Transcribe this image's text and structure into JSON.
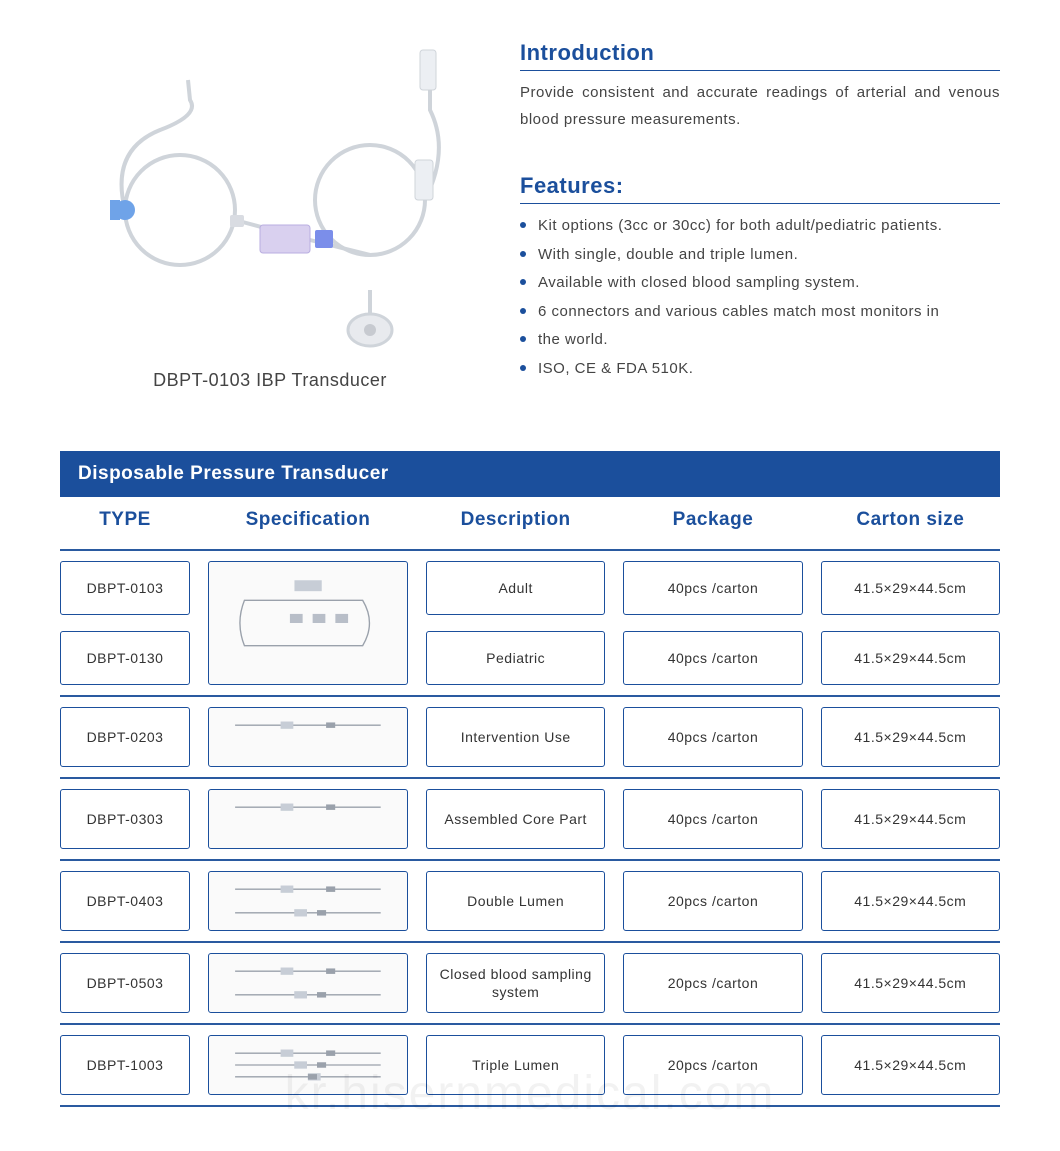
{
  "colors": {
    "brand": "#1b4f9c",
    "brand_dark": "#163e7a",
    "text": "#444444",
    "border": "#1b4f9c",
    "row_sep": "#2a5aa0",
    "bullet": "#1b4f9c"
  },
  "product": {
    "caption": "DBPT-0103 IBP Transducer"
  },
  "introduction": {
    "heading": "Introduction",
    "text": "Provide consistent and accurate readings of arterial and venous blood pressure measurements."
  },
  "features": {
    "heading": "Features:",
    "items": [
      "Kit options (3cc or 30cc) for both adult/pediatric patients.",
      "With single, double and triple lumen.",
      "Available with closed blood sampling system.",
      "6 connectors and various cables match most monitors in",
      "the world.",
      "ISO, CE & FDA 510K."
    ]
  },
  "table": {
    "title": "Disposable Pressure Transducer",
    "columns": [
      "TYPE",
      "Specification",
      "Description",
      "Package",
      "Carton  size"
    ],
    "merged_first": {
      "types": [
        "DBPT-0103",
        "DBPT-0130"
      ],
      "descriptions": [
        "Adult",
        "Pediatric"
      ],
      "packages": [
        "40pcs /carton",
        "40pcs /carton"
      ],
      "cartons": [
        "41.5×29×44.5cm",
        "41.5×29×44.5cm"
      ]
    },
    "rows": [
      {
        "type": "DBPT-0203",
        "description": "Intervention Use",
        "package": "40pcs /carton",
        "carton": "41.5×29×44.5cm"
      },
      {
        "type": "DBPT-0303",
        "description": "Assembled Core Part",
        "package": "40pcs /carton",
        "carton": "41.5×29×44.5cm"
      },
      {
        "type": "DBPT-0403",
        "description": "Double Lumen",
        "package": "20pcs /carton",
        "carton": "41.5×29×44.5cm"
      },
      {
        "type": "DBPT-0503",
        "description": "Closed blood sampling system",
        "package": "20pcs /carton",
        "carton": "41.5×29×44.5cm"
      },
      {
        "type": "DBPT-1003",
        "description": "Triple Lumen",
        "package": "20pcs /carton",
        "carton": "41.5×29×44.5cm"
      }
    ]
  },
  "watermark": "kr.hisernmedical.com"
}
